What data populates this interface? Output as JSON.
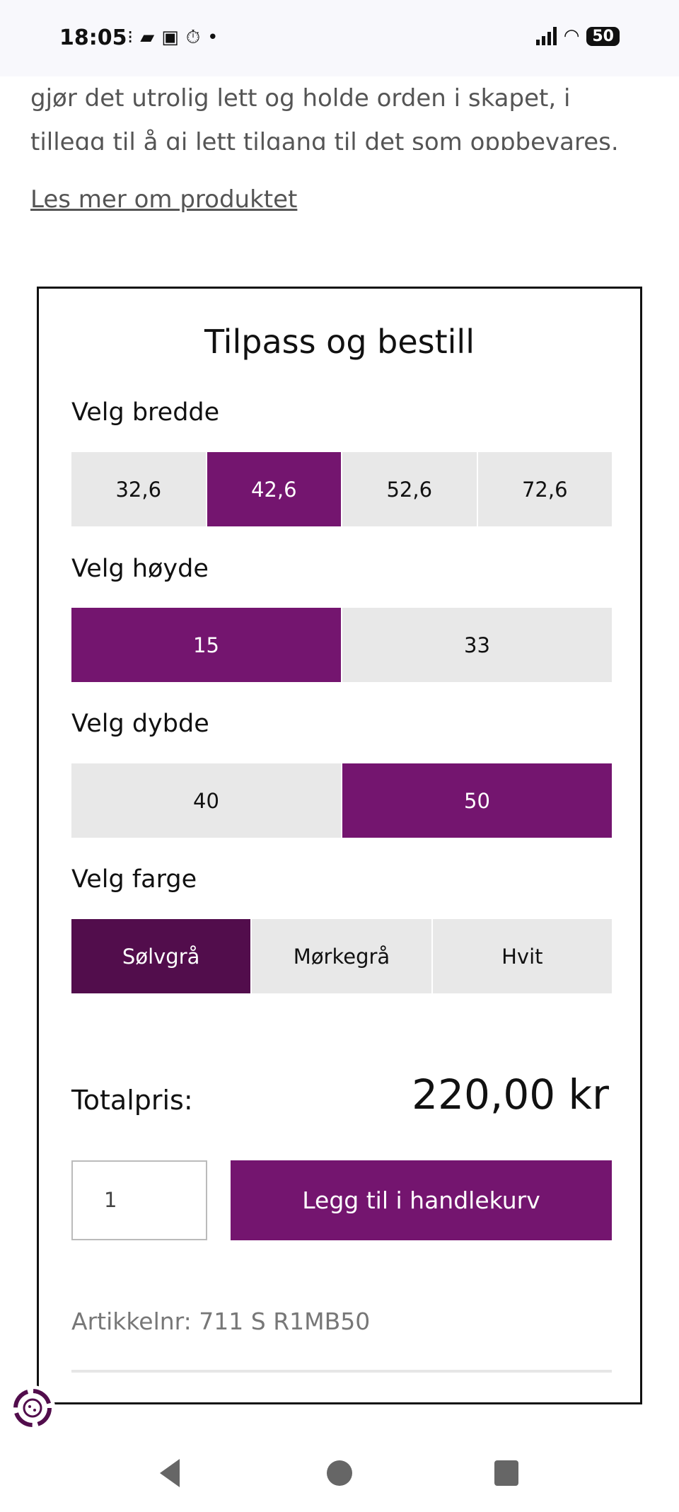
{
  "status_bar": {
    "time": "18:05",
    "notification_icons": [
      "steps-icon",
      "reader-icon",
      "wallet-icon",
      "timer-icon",
      "dot-icon"
    ],
    "battery": "50"
  },
  "description": {
    "line1": "gjør det utrolig lett og holde orden i skapet, i",
    "line2": "tillegg til å gi lett tilgang til det som oppbevares."
  },
  "read_more_link": "Les mer om produktet",
  "configurator": {
    "title": "Tilpass og bestill",
    "width": {
      "label": "Velg bredde",
      "options": [
        "32,6",
        "42,6",
        "52,6",
        "72,6"
      ],
      "selected": "42,6"
    },
    "height": {
      "label": "Velg høyde",
      "options": [
        "15",
        "33"
      ],
      "selected": "15"
    },
    "depth": {
      "label": "Velg dybde",
      "options": [
        "40",
        "50"
      ],
      "selected": "50"
    },
    "color": {
      "label": "Velg farge",
      "options": [
        "Sølvgrå",
        "Mørkegrå",
        "Hvit"
      ],
      "selected": "Sølvgrå"
    },
    "total_label": "Totalpris:",
    "total_price": "220,00 kr",
    "quantity": "1",
    "add_to_cart": "Legg til i handlekurv",
    "article_number": "Artikkelnr: 711 S R1MB50"
  },
  "colors": {
    "accent": "#74156f",
    "selected_dark": "#520d4c",
    "option_bg": "#e8e8e8"
  }
}
